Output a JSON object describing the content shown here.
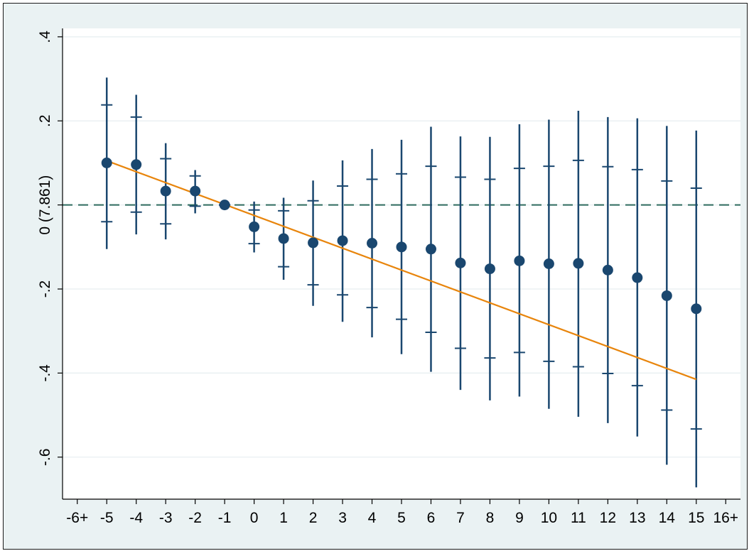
{
  "chart_data": {
    "type": "scatter",
    "title": "",
    "ylabel": "0 (7.861)",
    "xlabel": "",
    "x_tick_labels": [
      "-6+",
      "-5",
      "-4",
      "-3",
      "-2",
      "-1",
      "0",
      "1",
      "2",
      "3",
      "4",
      "5",
      "6",
      "7",
      "8",
      "9",
      "10",
      "11",
      "12",
      "13",
      "14",
      "15",
      "16+"
    ],
    "y_tick_labels": [
      ".4",
      ".2",
      "0 (7.861)",
      "-.2",
      "-.4",
      "-.6"
    ],
    "y_ticks": [
      0.4,
      0.2,
      0,
      -0.2,
      -0.4,
      -0.6
    ],
    "xlim": [
      -6.5,
      16.5
    ],
    "ylim": [
      -0.7,
      0.42
    ],
    "grid": true,
    "reference_line_y": 0,
    "series": [
      {
        "kind": "point_estimate",
        "x": [
          -5,
          -4,
          -3,
          -2,
          -1,
          0,
          1,
          2,
          3,
          4,
          5,
          6,
          7,
          8,
          9,
          10,
          11,
          12,
          13,
          14,
          15
        ],
        "y": [
          0.1,
          0.096,
          0.033,
          0.033,
          0.0,
          -0.052,
          -0.08,
          -0.09,
          -0.085,
          -0.091,
          -0.1,
          -0.105,
          -0.138,
          -0.152,
          -0.133,
          -0.14,
          -0.139,
          -0.155,
          -0.173,
          -0.216,
          -0.247
        ],
        "ci95_low": [
          -0.105,
          -0.07,
          -0.082,
          -0.02,
          0.0,
          -0.113,
          -0.178,
          -0.24,
          -0.278,
          -0.315,
          -0.355,
          -0.397,
          -0.44,
          -0.465,
          -0.456,
          -0.485,
          -0.504,
          -0.519,
          -0.551,
          -0.618,
          -0.672
        ],
        "ci95_high": [
          0.303,
          0.262,
          0.147,
          0.083,
          0.0,
          0.008,
          0.017,
          0.058,
          0.106,
          0.133,
          0.155,
          0.186,
          0.163,
          0.162,
          0.192,
          0.203,
          0.224,
          0.209,
          0.206,
          0.188,
          0.177
        ],
        "ci90_low": [
          -0.04,
          -0.017,
          -0.045,
          -0.003,
          0.0,
          -0.092,
          -0.147,
          -0.19,
          -0.214,
          -0.244,
          -0.272,
          -0.303,
          -0.341,
          -0.364,
          -0.351,
          -0.372,
          -0.385,
          -0.401,
          -0.43,
          -0.488,
          -0.533
        ],
        "ci90_high": [
          0.238,
          0.209,
          0.11,
          0.069,
          0.0,
          -0.012,
          -0.014,
          0.01,
          0.045,
          0.061,
          0.074,
          0.092,
          0.066,
          0.061,
          0.087,
          0.092,
          0.106,
          0.091,
          0.084,
          0.057,
          0.04
        ]
      },
      {
        "kind": "linear_trend",
        "x": [
          -5,
          15
        ],
        "y": [
          0.105,
          -0.415
        ]
      }
    ],
    "colors": {
      "marker": "#1a476f",
      "error_bar": "#1a476f",
      "trend_line": "#e8850c",
      "reference_line": "#2e6b5e",
      "plot_background": "#ffffff",
      "outer_background": "#eaf2f3",
      "grid": "#e6eef0"
    }
  }
}
